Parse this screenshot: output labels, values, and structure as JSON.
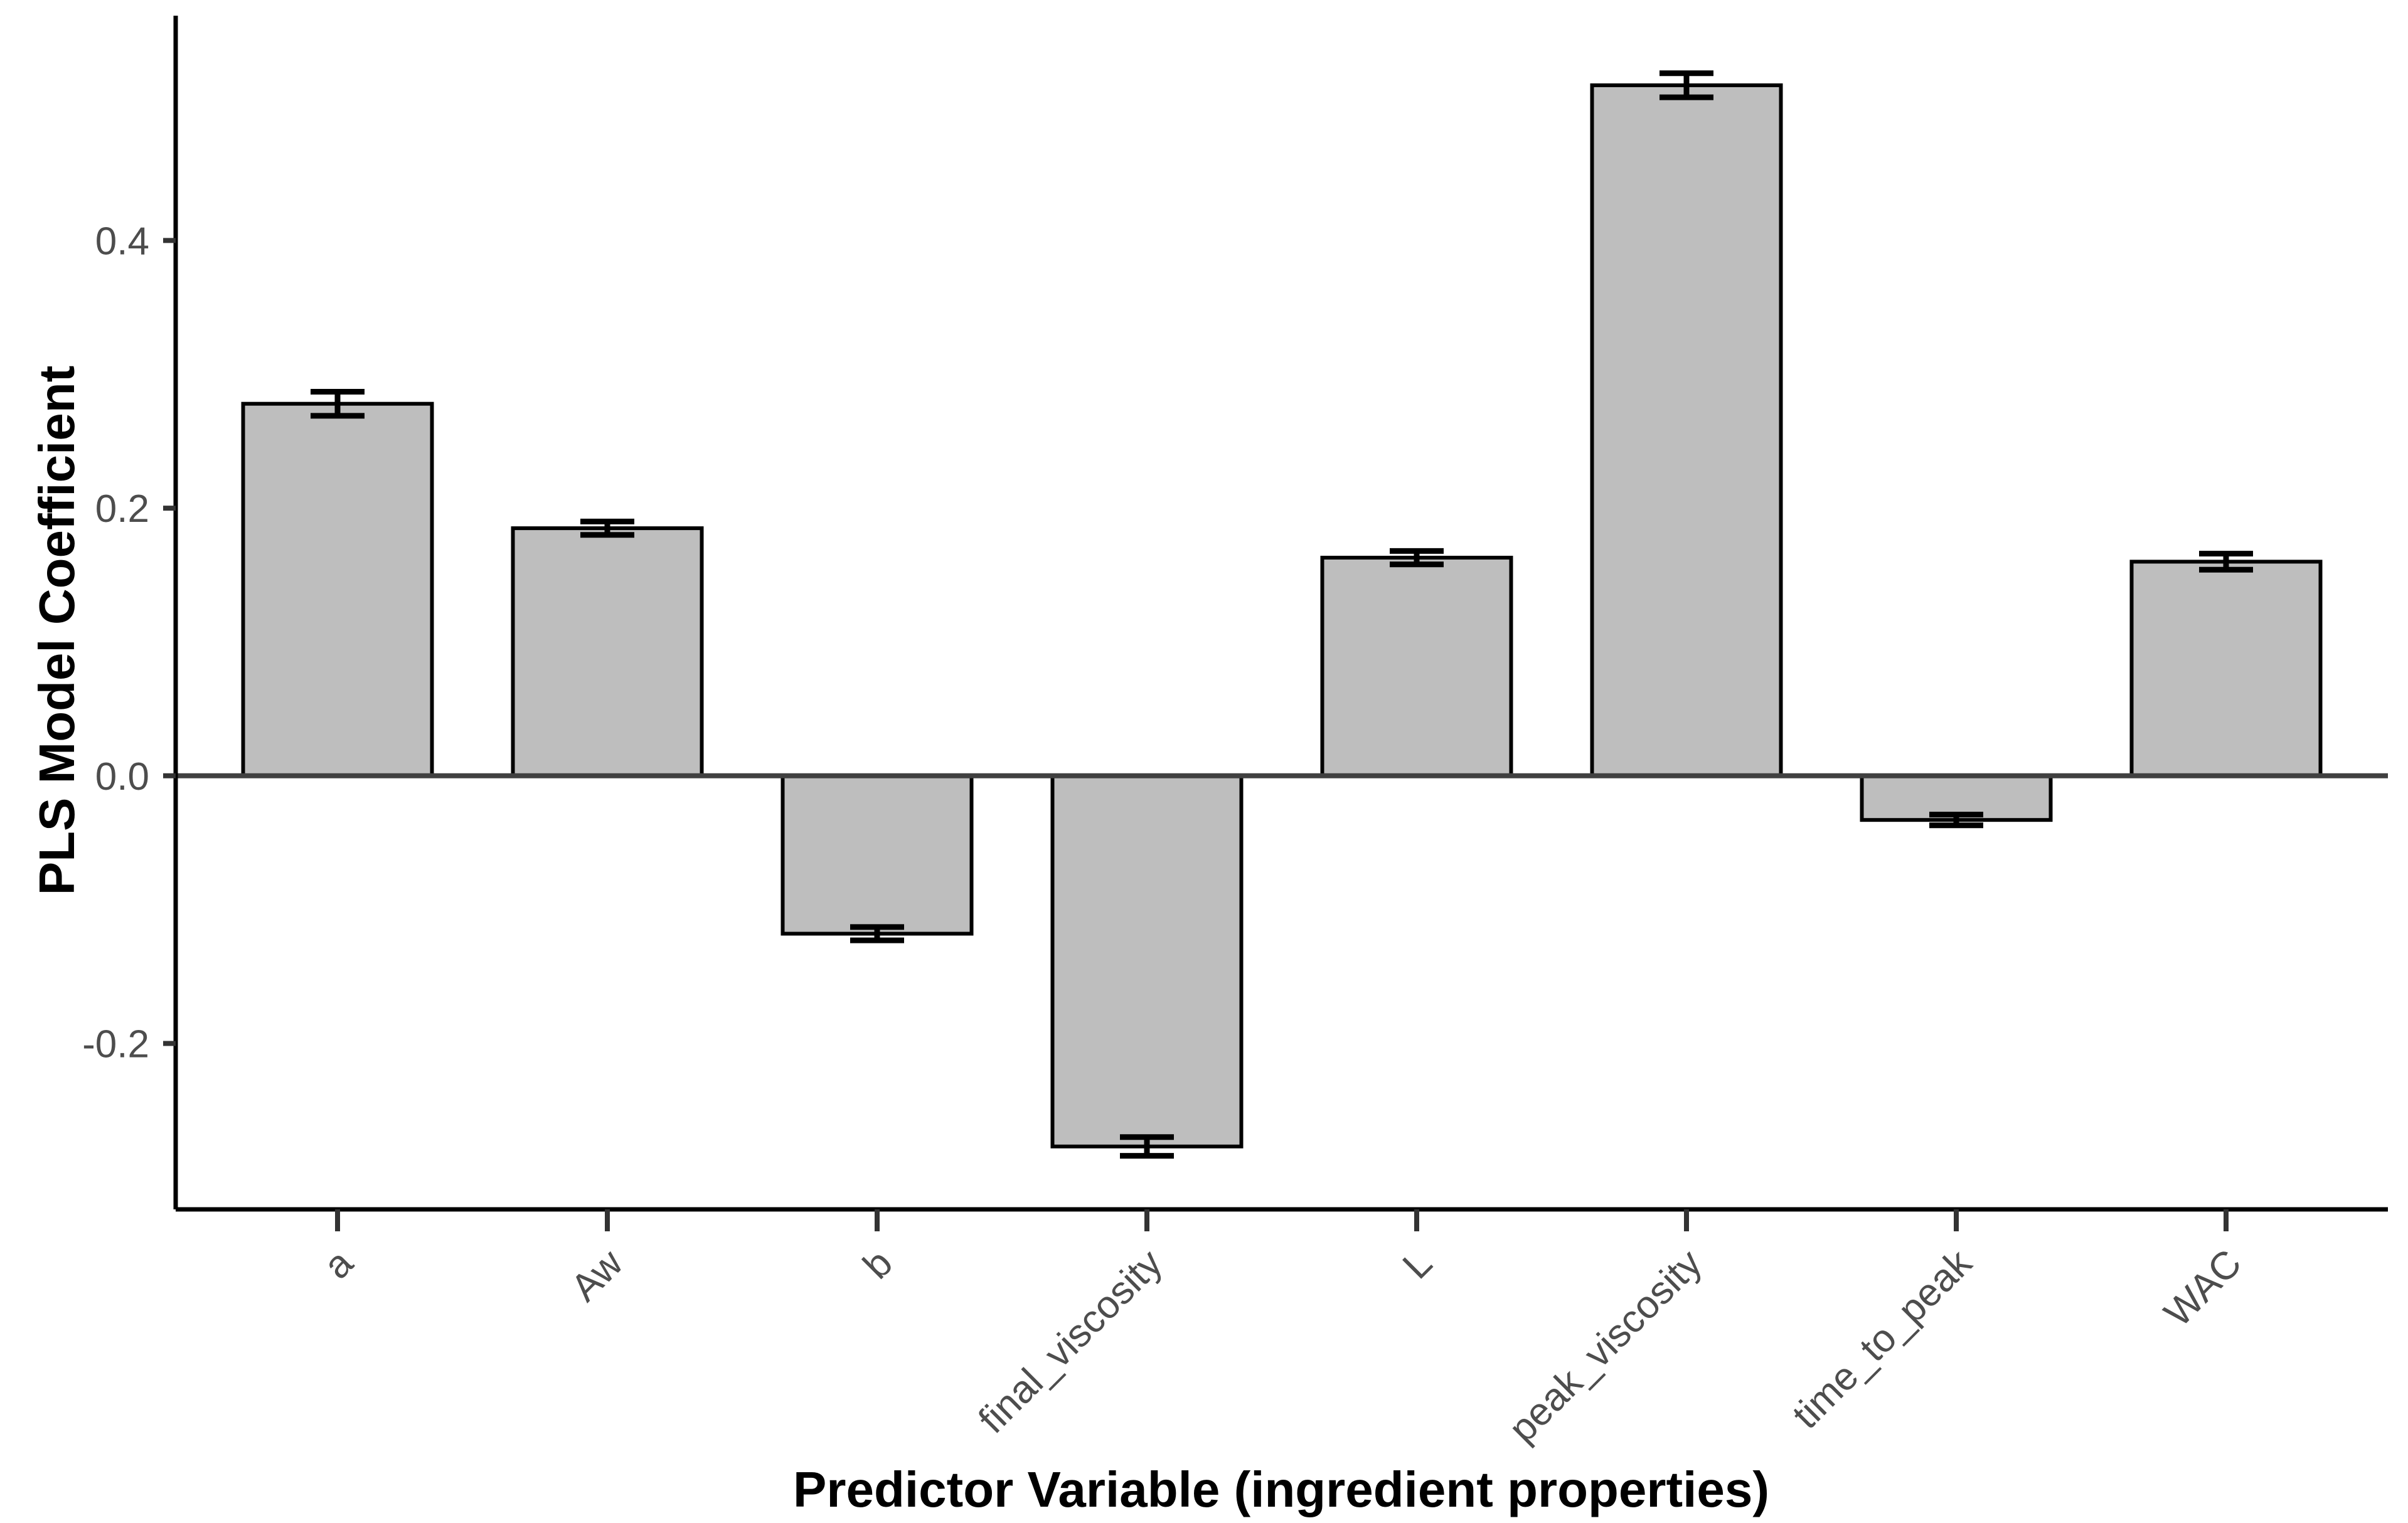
{
  "chart_data": {
    "type": "bar",
    "title": "",
    "xlabel": "Predictor Variable (ingredient properties)",
    "ylabel": "PLS Model Coefficient",
    "categories": [
      "a",
      "Aw",
      "b",
      "final_viscosity",
      "L",
      "peak_viscosity",
      "time_to_peak",
      "WAC"
    ],
    "series": [
      {
        "name": "PLS coefficient",
        "values": [
          0.278,
          0.185,
          -0.118,
          -0.277,
          0.163,
          0.516,
          -0.033,
          0.16
        ],
        "errors": [
          0.009,
          0.005,
          0.005,
          0.007,
          0.005,
          0.009,
          0.004,
          0.006
        ]
      }
    ],
    "y_ticks": {
      "values": [
        -0.2,
        0.0,
        0.2,
        0.4
      ],
      "labels": [
        "-0.2",
        "0.0",
        "0.2",
        "0.4"
      ]
    },
    "ylim": [
      -0.324,
      0.568
    ],
    "grid": false,
    "legend_position": "none",
    "x_tick_rotation_deg": 45,
    "zero_reference_line": 0.0,
    "colors": {
      "bar_fill": "#bebebe",
      "bar_stroke": "#000000",
      "error_bar": "#000000",
      "zero_line": "#404040",
      "axis_line": "#000000",
      "tick_mark": "#333333",
      "tick_label": "#4d4d4d",
      "axis_title": "#000000",
      "background": "#ffffff"
    }
  }
}
